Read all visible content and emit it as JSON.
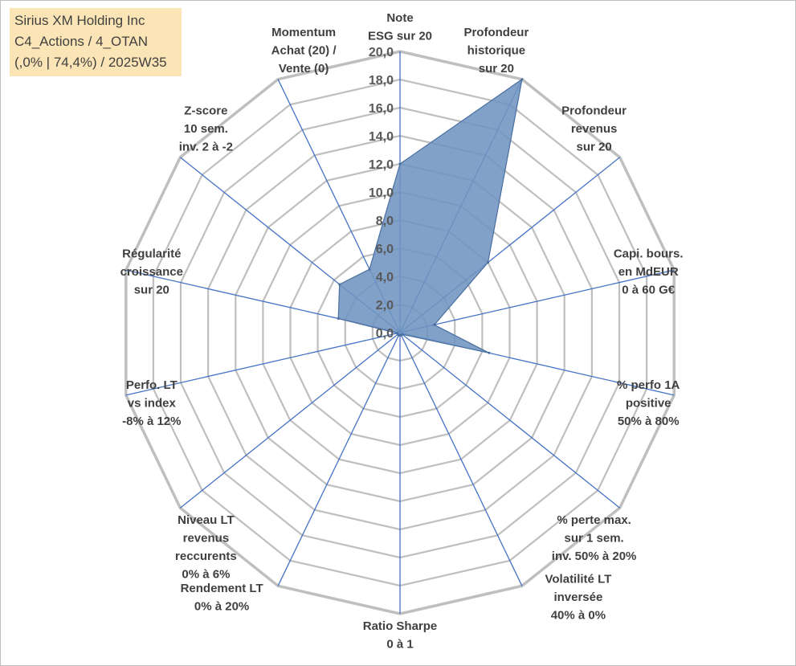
{
  "info_box": {
    "line1": "Sirius XM Holding Inc",
    "line2": "C4_Actions / 4_OTAN",
    "line3": "(,0% | 74,4%) / 2025W35"
  },
  "colors": {
    "fill": "#7094c0",
    "stroke": "#4a6fa0",
    "spoke": "#4472c4",
    "grid": "#bfbfbf",
    "box": "#fbe5b6"
  },
  "chart_data": {
    "type": "radar",
    "rlim": [
      0,
      20
    ],
    "tick_step": 2,
    "tick_labels": [
      "0,0",
      "2,0",
      "4,0",
      "6,0",
      "8,0",
      "10,0",
      "12,0",
      "14,0",
      "16,0",
      "18,0",
      "20,0"
    ],
    "grid": true,
    "axes": [
      {
        "label": [
          "Note",
          "ESG sur 20"
        ],
        "value": 12.0
      },
      {
        "label": [
          "Profondeur",
          "historique",
          "sur 20"
        ],
        "value": 20.0
      },
      {
        "label": [
          "Profondeur",
          "revenus",
          "sur 20"
        ],
        "value": 8.0
      },
      {
        "label": [
          "Capi. bours.",
          "en MdEUR",
          "0 à 60 G€"
        ],
        "value": 2.5
      },
      {
        "label": [
          "% perfo 1A",
          "positive",
          "50% à 80%"
        ],
        "value": 6.5
      },
      {
        "label": [
          "% perte max.",
          "sur 1 sem.",
          "inv. 50% à 20%"
        ],
        "value": 0.2
      },
      {
        "label": [
          "Volatilité LT",
          "inversée",
          "40% à 0%"
        ],
        "value": 0.2
      },
      {
        "label": [
          "Ratio Sharpe",
          "0 à 1"
        ],
        "value": 0.2
      },
      {
        "label": [
          "Rendement LT",
          "0% à 20%"
        ],
        "value": 0.2
      },
      {
        "label": [
          "Niveau LT",
          "revenus",
          "reccurents",
          "0% à 6%"
        ],
        "value": 0.2
      },
      {
        "label": [
          "Perfo. LT",
          "vs index",
          "-8% à 12%"
        ],
        "value": 0.2
      },
      {
        "label": [
          "Régularité",
          "croissance",
          "sur 20"
        ],
        "value": 4.5
      },
      {
        "label": [
          "Z-score",
          "10 sem.",
          "inv. 2 à -2"
        ],
        "value": 5.5
      },
      {
        "label": [
          "Momentum",
          "Achat (20) /",
          "Vente (0)"
        ],
        "value": 5.0
      }
    ]
  }
}
